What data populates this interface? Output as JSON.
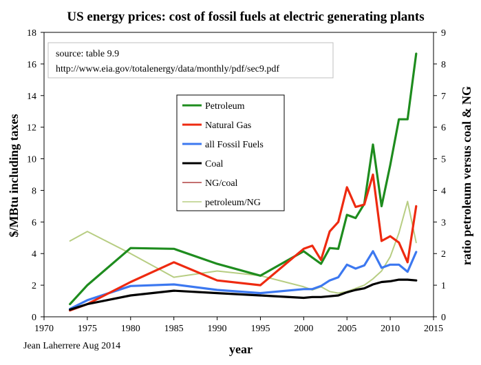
{
  "chart_data": {
    "type": "line",
    "title": "US energy prices: cost of fossil fuels at electric generating plants",
    "xlabel": "year",
    "ylabel_left": "$/MBtu including taxes",
    "ylabel_right": "ratio petroleum versus coal & NG",
    "xlim": [
      1970,
      2015
    ],
    "ylim_left": [
      0,
      18
    ],
    "ylim_right": [
      0,
      9
    ],
    "x_ticks": [
      1970,
      1975,
      1980,
      1985,
      1990,
      1995,
      2000,
      2005,
      2010,
      2015
    ],
    "y_ticks_left": [
      0,
      2,
      4,
      6,
      8,
      10,
      12,
      14,
      16,
      18
    ],
    "y_ticks_right": [
      0,
      1,
      2,
      3,
      4,
      5,
      6,
      7,
      8,
      9
    ],
    "grid": false,
    "legend_placement": "center",
    "source_note": [
      "source: table 9.9",
      "http://www.eia.gov/totalenergy/data/monthly/pdf/sec9.pdf"
    ],
    "author_note": "Jean Laherrere Aug 2014",
    "series": [
      {
        "name": "Petroleum",
        "axis": "left",
        "color": "#1e8c1e",
        "x": [
          1973,
          1975,
          1980,
          1985,
          1990,
          1995,
          2000,
          2001,
          2002,
          2003,
          2004,
          2005,
          2006,
          2007,
          2008,
          2009,
          2010,
          2011,
          2012,
          2013
        ],
        "values": [
          0.8,
          2.0,
          4.35,
          4.3,
          3.35,
          2.6,
          4.15,
          3.75,
          3.35,
          4.35,
          4.3,
          6.45,
          6.25,
          7.15,
          10.9,
          7.0,
          9.6,
          12.5,
          12.5,
          16.65
        ]
      },
      {
        "name": "Natural Gas",
        "axis": "left",
        "color": "#ee2a10",
        "x": [
          1973,
          1975,
          1980,
          1985,
          1990,
          1995,
          2000,
          2001,
          2002,
          2003,
          2004,
          2005,
          2006,
          2007,
          2008,
          2009,
          2010,
          2011,
          2012,
          2013
        ],
        "values": [
          0.4,
          0.8,
          2.2,
          3.45,
          2.3,
          2.0,
          4.3,
          4.5,
          3.6,
          5.4,
          6.0,
          8.2,
          6.95,
          7.1,
          9.0,
          4.8,
          5.1,
          4.7,
          3.45,
          7.0
        ]
      },
      {
        "name": "all Fossil Fuels",
        "axis": "left",
        "color": "#3c78f0",
        "x": [
          1973,
          1975,
          1980,
          1985,
          1990,
          1995,
          2000,
          2001,
          2002,
          2003,
          2004,
          2005,
          2006,
          2007,
          2008,
          2009,
          2010,
          2011,
          2012,
          2013
        ],
        "values": [
          0.5,
          1.05,
          1.95,
          2.05,
          1.7,
          1.5,
          1.75,
          1.75,
          1.95,
          2.3,
          2.5,
          3.3,
          3.05,
          3.25,
          4.15,
          3.1,
          3.3,
          3.3,
          2.85,
          4.1
        ]
      },
      {
        "name": "Coal",
        "axis": "left",
        "color": "#000000",
        "x": [
          1973,
          1975,
          1980,
          1985,
          1990,
          1995,
          2000,
          2001,
          2002,
          2003,
          2004,
          2005,
          2006,
          2007,
          2008,
          2009,
          2010,
          2011,
          2012,
          2013
        ],
        "values": [
          0.45,
          0.8,
          1.35,
          1.65,
          1.5,
          1.35,
          1.2,
          1.25,
          1.25,
          1.3,
          1.35,
          1.55,
          1.7,
          1.8,
          2.05,
          2.2,
          2.25,
          2.35,
          2.35,
          2.3
        ]
      },
      {
        "name": "NG/coal",
        "axis": "right",
        "color": "#b04040",
        "x": [],
        "values": []
      },
      {
        "name": "petroleum/NG",
        "axis": "right",
        "color": "#b7cd82",
        "x": [
          1973,
          1975,
          1980,
          1985,
          1990,
          1995,
          2000,
          2001,
          2002,
          2003,
          2004,
          2005,
          2006,
          2007,
          2008,
          2009,
          2010,
          2011,
          2012,
          2013
        ],
        "values": [
          2.4,
          2.7,
          2.0,
          1.25,
          1.45,
          1.3,
          0.95,
          0.85,
          0.95,
          0.8,
          0.75,
          0.8,
          0.9,
          1.0,
          1.2,
          1.45,
          1.9,
          2.65,
          3.65,
          2.35
        ]
      }
    ]
  }
}
